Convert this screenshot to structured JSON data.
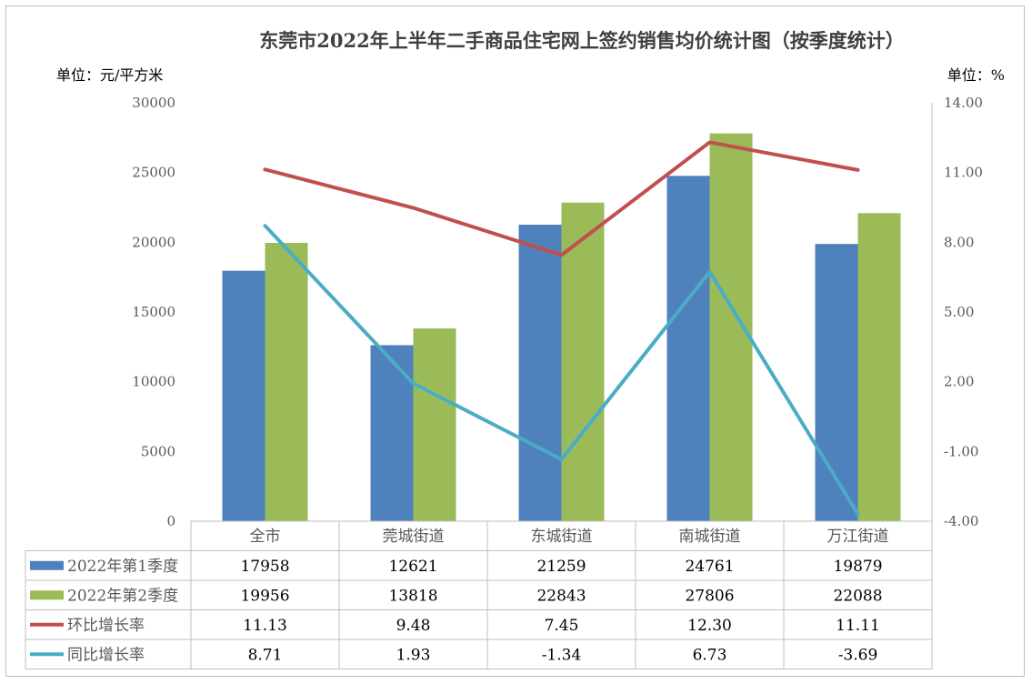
{
  "chart_data": {
    "type": "bar",
    "title": "东莞市2022年上半年二手商品住宅网上签约销售均价统计图（按季度统计）",
    "ylabel_left": "单位：元/平方米",
    "ylabel_right": "单位：%",
    "categories": [
      "全市",
      "莞城街道",
      "东城街道",
      "南城街道",
      "万江街道"
    ],
    "bar_series": [
      {
        "name": "2022年第1季度",
        "values": [
          17958,
          12621,
          21259,
          24761,
          19879
        ],
        "color": "#4f81bd"
      },
      {
        "name": "2022年第2季度",
        "values": [
          19956,
          13818,
          22843,
          27806,
          22088
        ],
        "color": "#9bbb59"
      }
    ],
    "line_series": [
      {
        "name": "环比增长率",
        "values_text": [
          "11.13",
          "9.48",
          "7.45",
          "12.30",
          "11.11"
        ],
        "values": [
          11.13,
          9.48,
          7.45,
          12.3,
          11.11
        ],
        "color": "#c0504d"
      },
      {
        "name": "同比增长率",
        "values_text": [
          "8.71",
          "1.93",
          "-1.34",
          "6.73",
          "-3.69"
        ],
        "values": [
          8.71,
          1.93,
          -1.34,
          6.73,
          -3.69
        ],
        "color": "#4bacc6"
      }
    ],
    "ylim_left": [
      0,
      30000
    ],
    "yticks_left": [
      "0",
      "5000",
      "10000",
      "15000",
      "20000",
      "25000",
      "30000"
    ],
    "ylim_right": [
      -4,
      14
    ],
    "yticks_right": [
      "-4.00",
      "-1.00",
      "2.00",
      "5.00",
      "8.00",
      "11.00",
      "14.00"
    ],
    "grid": false,
    "legend": "data-table"
  }
}
